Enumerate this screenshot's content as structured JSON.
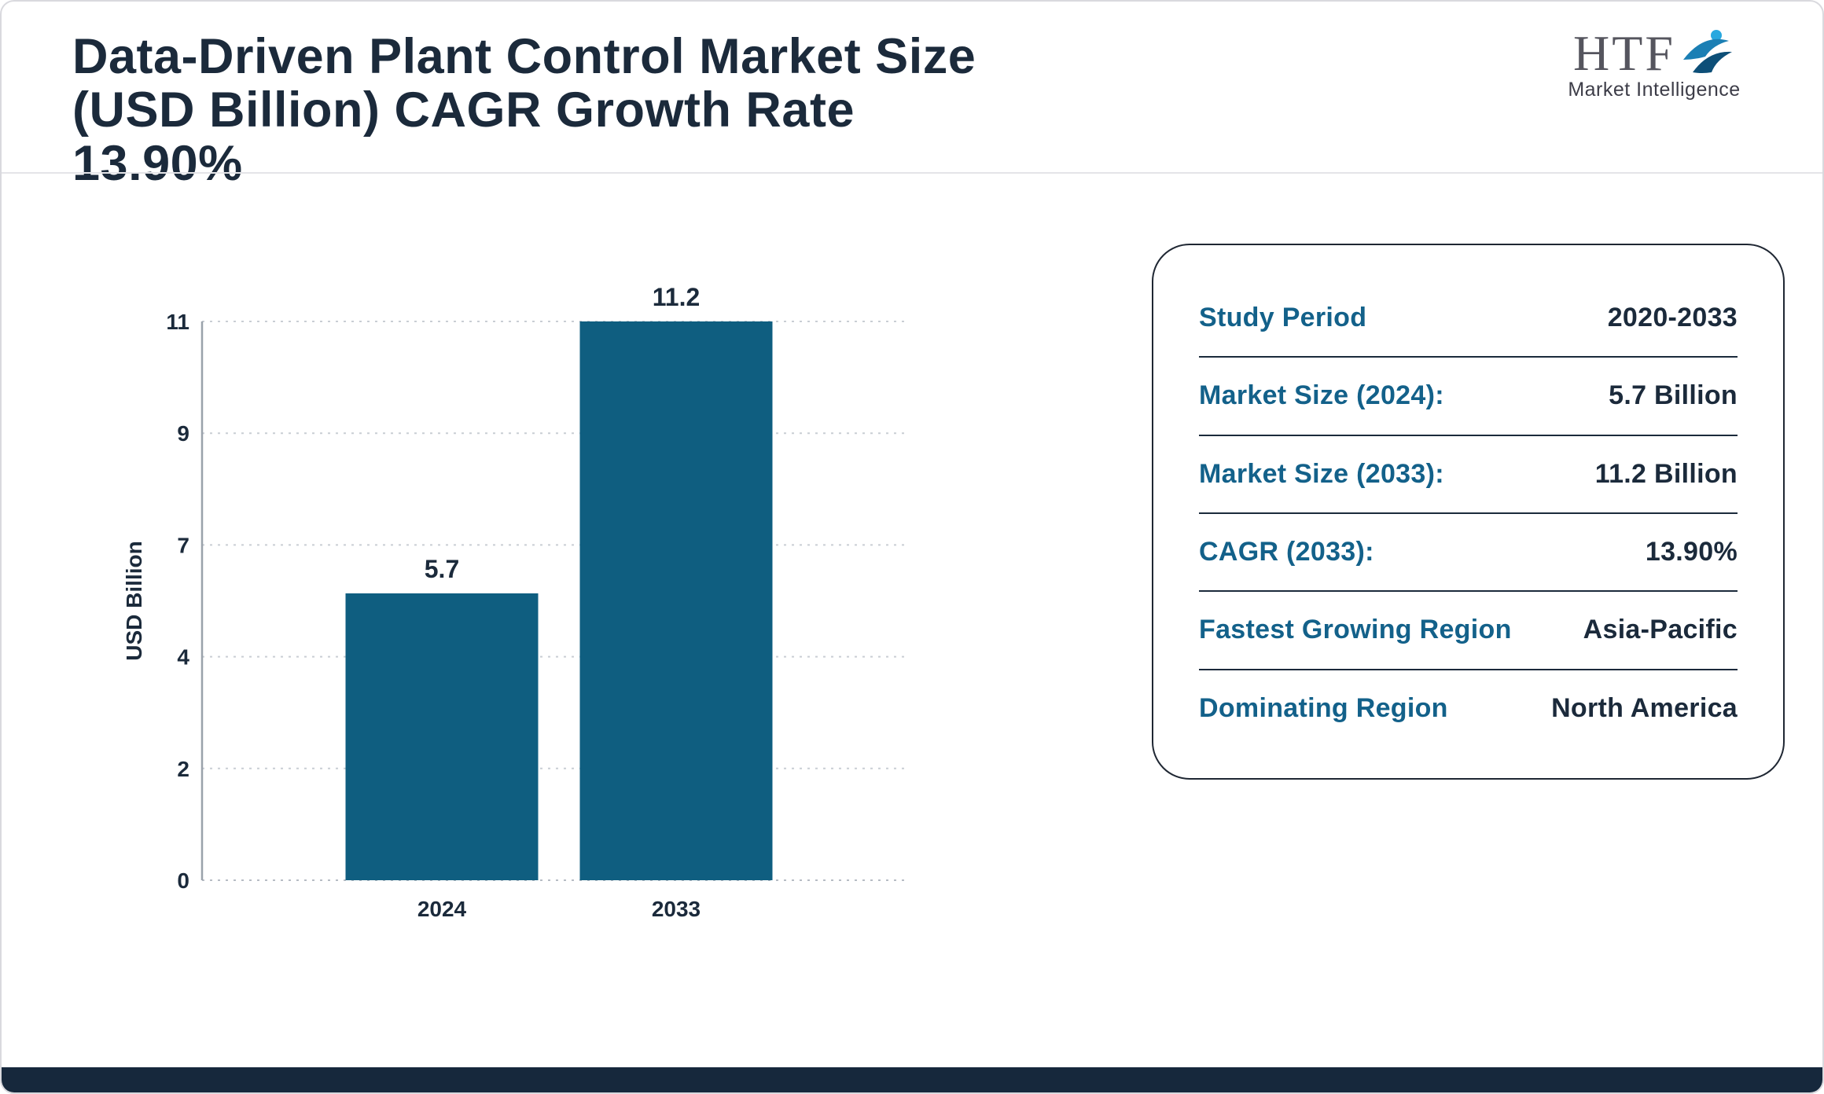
{
  "header": {
    "title": "Data-Driven Plant Control Market Size (USD Billion) CAGR Growth Rate 13.90%",
    "logo": {
      "acronym": "HTF",
      "subtitle": "Market Intelligence"
    }
  },
  "chart_data": {
    "type": "bar",
    "categories": [
      "2024",
      "2033"
    ],
    "values": [
      5.7,
      11.2
    ],
    "value_labels": [
      "5.7",
      "11.2"
    ],
    "title": "",
    "xlabel": "",
    "ylabel": "USD Billion",
    "yticks": [
      0,
      2,
      4,
      7,
      9,
      11
    ],
    "ylim": [
      0,
      11
    ],
    "grid": true,
    "legend": "none",
    "bar_color": "#0f5e80"
  },
  "summary_card": {
    "rows": [
      {
        "label": "Study Period",
        "value": "2020-2033"
      },
      {
        "label": "Market Size (2024):",
        "value": "5.7 Billion"
      },
      {
        "label": "Market Size (2033):",
        "value": "11.2 Billion"
      },
      {
        "label": "CAGR (2033):",
        "value": "13.90%"
      },
      {
        "label": "Fastest Growing Region",
        "value": "Asia-Pacific"
      },
      {
        "label": "Dominating Region",
        "value": "North America"
      }
    ]
  },
  "colors": {
    "bar_teal": "#0f5e80",
    "label_teal": "#13618a",
    "navy_text": "#1b2a3b",
    "footer_navy": "#16283c",
    "grid_gray": "#c9ced4"
  }
}
